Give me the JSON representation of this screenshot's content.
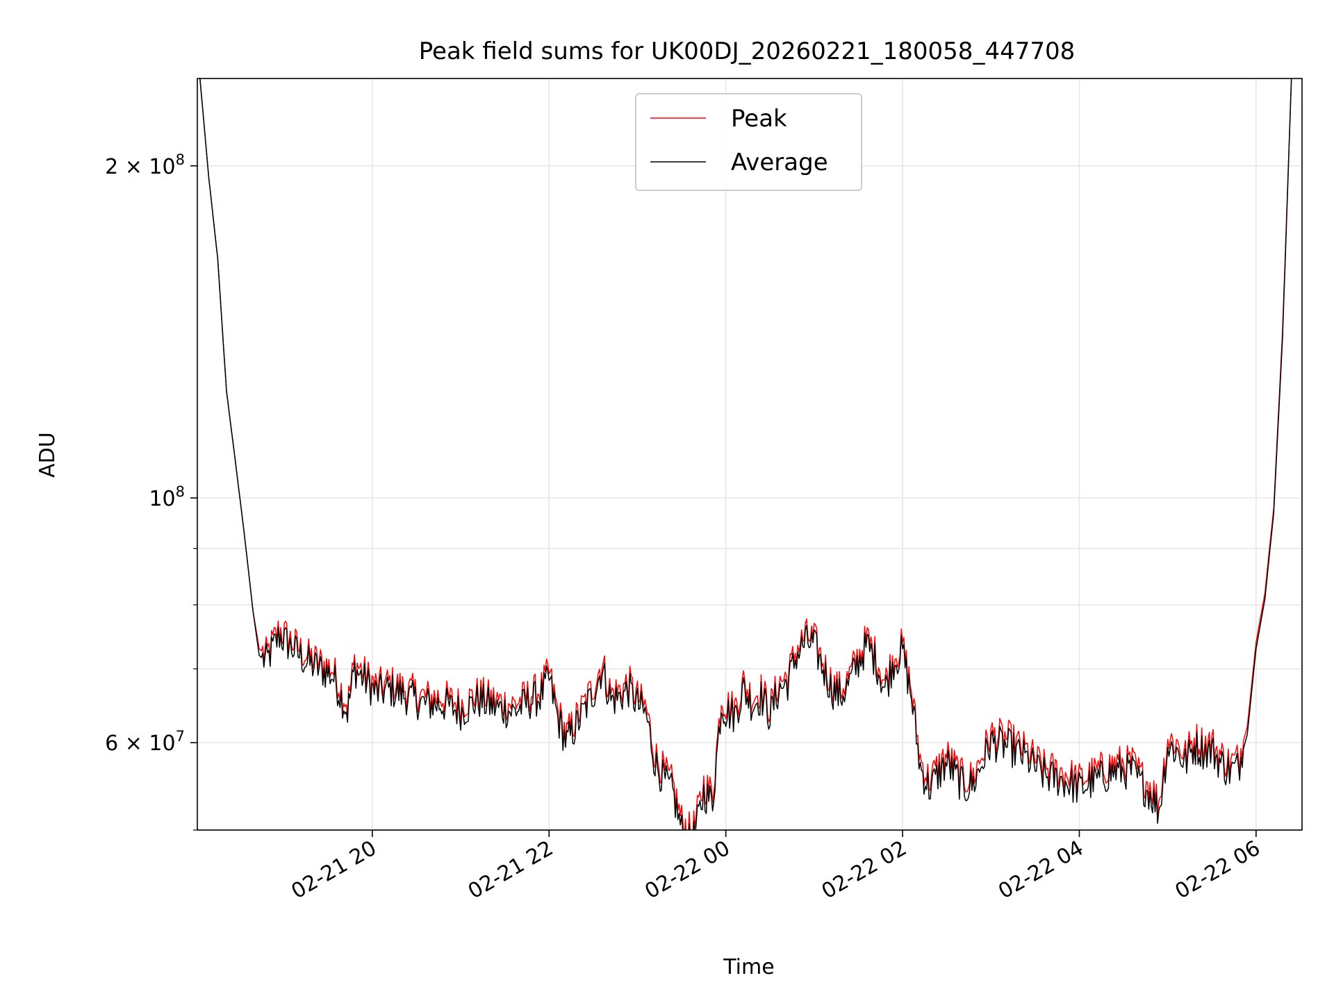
{
  "colors": {
    "peak": "#ff0000",
    "average": "#000000",
    "grid": "#e6e6e6",
    "frame": "#000000",
    "legend_border": "#cccccc"
  },
  "chart_data": {
    "type": "line",
    "title": "Peak field sums for UK00DJ_20260221_180058_447708",
    "xlabel": "Time",
    "ylabel": "ADU",
    "yscale": "log",
    "ylim": [
      50000000,
      240000000
    ],
    "xlim_hours": [
      18.02,
      30.52
    ],
    "x_unit": "hours since 2026-02-21 00:00",
    "grid": true,
    "legend_location": "upper center",
    "x_ticks": [
      {
        "hours": 20,
        "label": "02-21 20"
      },
      {
        "hours": 22,
        "label": "02-21 22"
      },
      {
        "hours": 24,
        "label": "02-22 00"
      },
      {
        "hours": 26,
        "label": "02-22 02"
      },
      {
        "hours": 28,
        "label": "02-22 04"
      },
      {
        "hours": 30,
        "label": "02-22 06"
      }
    ],
    "y_major_ticks": [
      {
        "value": 60000000,
        "base": "6 × 10",
        "exp": "7"
      },
      {
        "value": 100000000,
        "base": "10",
        "exp": "8"
      },
      {
        "value": 200000000,
        "base": "2 × 10",
        "exp": "8"
      }
    ],
    "y_minor_ticks": [
      50000000,
      70000000,
      80000000,
      90000000
    ],
    "series": [
      {
        "name": "Peak",
        "color": "#ff0000",
        "x": [
          18.05,
          18.15,
          18.25,
          18.35,
          18.45,
          18.55,
          18.65,
          18.72,
          18.8,
          18.95,
          19.1,
          19.25,
          19.4,
          19.55,
          19.72,
          19.8,
          19.9,
          20.05,
          20.2,
          20.4,
          20.6,
          20.8,
          21.0,
          21.2,
          21.4,
          21.6,
          21.8,
          21.9,
          22.0,
          22.1,
          22.2,
          22.35,
          22.5,
          22.6,
          22.7,
          22.8,
          22.9,
          23.0,
          23.1,
          23.2,
          23.3,
          23.4,
          23.5,
          23.6,
          23.65,
          23.75,
          23.85,
          23.95,
          24.0,
          24.1,
          24.2,
          24.3,
          24.4,
          24.5,
          24.6,
          24.7,
          24.8,
          24.9,
          25.0,
          25.1,
          25.2,
          25.3,
          25.4,
          25.5,
          25.6,
          25.7,
          25.8,
          25.9,
          26.0,
          26.1,
          26.2,
          26.3,
          26.4,
          26.5,
          26.6,
          26.7,
          26.8,
          26.9,
          27.0,
          27.2,
          27.4,
          27.6,
          27.8,
          28.0,
          28.2,
          28.4,
          28.6,
          28.7,
          28.8,
          28.9,
          29.0,
          29.1,
          29.2,
          29.3,
          29.4,
          29.5,
          29.6,
          29.7,
          29.8,
          29.9,
          30.0,
          30.1,
          30.2,
          30.3,
          30.4
        ],
        "values": [
          240000000,
          195000000,
          165000000,
          125000000,
          108000000,
          93000000,
          79000000,
          73000000,
          72000000,
          76000000,
          74000000,
          72000000,
          71000000,
          70000000,
          65000000,
          71000000,
          69500000,
          67500000,
          68000000,
          67000000,
          66000000,
          66000000,
          65000000,
          66500000,
          65500000,
          65000000,
          66500000,
          67000000,
          69500000,
          64000000,
          61000000,
          64000000,
          67500000,
          71000000,
          66500000,
          67000000,
          68000000,
          66000000,
          64500000,
          58500000,
          56500000,
          55000000,
          51000000,
          49800000,
          50500000,
          55000000,
          54000000,
          66000000,
          65000000,
          64500000,
          68000000,
          66000000,
          67000000,
          64500000,
          68000000,
          69000000,
          73000000,
          75000000,
          74500000,
          71000000,
          68000000,
          67000000,
          69000000,
          72000000,
          74500000,
          72000000,
          68000000,
          72000000,
          73500000,
          67000000,
          58000000,
          55500000,
          57000000,
          58500000,
          57000000,
          55500000,
          56000000,
          58500000,
          61000000,
          60500000,
          59000000,
          57000000,
          56500000,
          55500000,
          56500000,
          57500000,
          57500000,
          56000000,
          55000000,
          53000000,
          60500000,
          60000000,
          58500000,
          60500000,
          60000000,
          60000000,
          58500000,
          57500000,
          58000000,
          62000000,
          74000000,
          82000000,
          98000000,
          142000000,
          240000000
        ]
      },
      {
        "name": "Average",
        "color": "#000000",
        "x": [
          18.05,
          18.15,
          18.25,
          18.35,
          18.45,
          18.55,
          18.65,
          18.72,
          18.8,
          18.95,
          19.1,
          19.25,
          19.4,
          19.55,
          19.72,
          19.8,
          19.9,
          20.05,
          20.2,
          20.4,
          20.6,
          20.8,
          21.0,
          21.2,
          21.4,
          21.6,
          21.8,
          21.9,
          22.0,
          22.1,
          22.2,
          22.35,
          22.5,
          22.6,
          22.7,
          22.8,
          22.9,
          23.0,
          23.1,
          23.2,
          23.3,
          23.4,
          23.5,
          23.6,
          23.65,
          23.75,
          23.85,
          23.95,
          24.0,
          24.1,
          24.2,
          24.3,
          24.4,
          24.5,
          24.6,
          24.7,
          24.8,
          24.9,
          25.0,
          25.1,
          25.2,
          25.3,
          25.4,
          25.5,
          25.6,
          25.7,
          25.8,
          25.9,
          26.0,
          26.1,
          26.2,
          26.3,
          26.4,
          26.5,
          26.6,
          26.7,
          26.8,
          26.9,
          27.0,
          27.2,
          27.4,
          27.6,
          27.8,
          28.0,
          28.2,
          28.4,
          28.6,
          28.7,
          28.8,
          28.9,
          29.0,
          29.1,
          29.2,
          29.3,
          29.4,
          29.5,
          29.6,
          29.7,
          29.8,
          29.9,
          30.0,
          30.1,
          30.2,
          30.3,
          30.4
        ],
        "values": [
          240000000,
          195000000,
          165000000,
          125000000,
          108000000,
          93000000,
          79000000,
          72000000,
          71000000,
          75000000,
          73000000,
          71000000,
          70000000,
          69000000,
          64000000,
          70000000,
          68500000,
          66500000,
          67000000,
          66000000,
          65000000,
          65000000,
          64000000,
          65500000,
          64500000,
          64000000,
          65500000,
          66000000,
          68500000,
          63000000,
          60000000,
          63000000,
          66500000,
          70000000,
          65500000,
          66000000,
          67000000,
          65000000,
          63500000,
          57500000,
          55500000,
          54000000,
          50000000,
          48500000,
          49500000,
          54000000,
          53000000,
          65000000,
          64000000,
          63500000,
          67000000,
          65000000,
          66000000,
          63500000,
          67000000,
          68000000,
          72000000,
          74000000,
          73500000,
          70000000,
          67000000,
          66000000,
          68000000,
          71000000,
          73500000,
          71000000,
          67000000,
          71000000,
          72500000,
          66000000,
          57000000,
          54500000,
          56000000,
          57500000,
          56000000,
          54500000,
          55000000,
          57500000,
          60000000,
          59500000,
          58000000,
          56000000,
          55500000,
          54500000,
          55500000,
          56500000,
          56500000,
          55000000,
          54000000,
          52000000,
          59500000,
          59000000,
          57500000,
          59500000,
          59000000,
          59000000,
          57500000,
          56500000,
          57000000,
          61000000,
          73000000,
          81000000,
          97000000,
          140000000,
          240000000
        ]
      }
    ]
  }
}
